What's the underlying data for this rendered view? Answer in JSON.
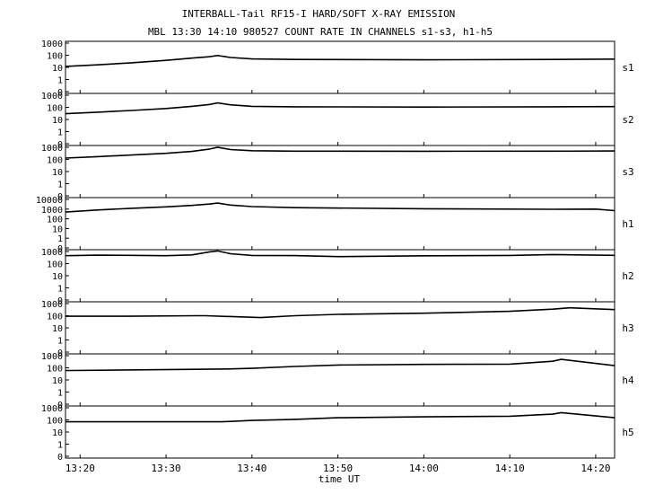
{
  "chart_data": {
    "type": "line",
    "title": "INTERBALL-Tail RF15-I HARD/SOFT X-RAY EMISSION",
    "subtitle": "MBL 13:30 14:10 980527  COUNT RATE IN CHANNELS s1-s3, h1-h5",
    "xlabel": "time UT",
    "x_ticks": [
      "13:20",
      "13:30",
      "13:40",
      "13:50",
      "14:00",
      "14:10",
      "14:20"
    ],
    "x_tick_minutes": [
      20,
      30,
      40,
      50,
      60,
      70,
      80
    ],
    "xlim_minutes": [
      18.3,
      82.2
    ],
    "y_scale": "log",
    "panels": [
      {
        "name": "s1",
        "y_ticks": [
          "1000",
          "100",
          "10",
          "1",
          "0"
        ],
        "ylim": [
          0,
          1000
        ],
        "x": [
          18.3,
          22,
          26,
          30,
          33,
          35,
          36,
          37.5,
          40,
          45,
          60,
          75,
          82.2
        ],
        "y": [
          12,
          16,
          24,
          38,
          58,
          75,
          95,
          65,
          50,
          45,
          42,
          45,
          48
        ]
      },
      {
        "name": "s2",
        "y_ticks": [
          "1000",
          "100",
          "10",
          "1",
          "0"
        ],
        "ylim": [
          0,
          1000
        ],
        "x": [
          18.3,
          22,
          26,
          30,
          33,
          35,
          36,
          37.5,
          40,
          45,
          60,
          75,
          82.2
        ],
        "y": [
          30,
          40,
          55,
          80,
          120,
          170,
          230,
          160,
          120,
          110,
          105,
          110,
          115
        ]
      },
      {
        "name": "s3",
        "y_ticks": [
          "1000",
          "100",
          "10",
          "1",
          "0"
        ],
        "ylim": [
          0,
          1000
        ],
        "x": [
          18.3,
          22,
          26,
          30,
          33,
          35,
          36,
          37.5,
          40,
          45,
          60,
          75,
          82.2
        ],
        "y": [
          130,
          170,
          230,
          320,
          460,
          700,
          1000,
          650,
          520,
          480,
          470,
          480,
          500
        ]
      },
      {
        "name": "h1",
        "y_ticks": [
          "10000",
          "1000",
          "100",
          "10",
          "1",
          "0"
        ],
        "ylim": [
          0,
          10000
        ],
        "x": [
          18.3,
          22,
          26,
          30,
          33,
          35,
          36,
          37.5,
          40,
          45,
          60,
          75,
          80,
          82.2
        ],
        "y": [
          500,
          800,
          1200,
          1700,
          2400,
          3300,
          4200,
          2600,
          1800,
          1400,
          1100,
          950,
          1000,
          700
        ]
      },
      {
        "name": "h2",
        "y_ticks": [
          "1000",
          "100",
          "10",
          "1",
          "0"
        ],
        "ylim": [
          0,
          1000
        ],
        "x": [
          18.3,
          22,
          26,
          30,
          33,
          35,
          36,
          37.5,
          40,
          45,
          50,
          60,
          70,
          75,
          82.2
        ],
        "y": [
          450,
          500,
          480,
          450,
          520,
          900,
          1100,
          650,
          470,
          460,
          380,
          440,
          470,
          560,
          480
        ]
      },
      {
        "name": "h3",
        "y_ticks": [
          "1000",
          "100",
          "10",
          "1",
          "0"
        ],
        "ylim": [
          0,
          1000
        ],
        "x": [
          18.3,
          22,
          25.5,
          33.6,
          34.6,
          41,
          45,
          50,
          60,
          70,
          75,
          77,
          82.2
        ],
        "y": [
          90,
          90,
          90,
          100,
          100,
          70,
          100,
          130,
          160,
          230,
          350,
          450,
          320
        ]
      },
      {
        "name": "h4",
        "y_ticks": [
          "1000",
          "100",
          "10",
          "1",
          "0"
        ],
        "ylim": [
          0,
          1000
        ],
        "x": [
          18.3,
          18.9,
          37.2,
          40,
          45,
          50,
          60,
          70,
          75,
          76,
          82.2
        ],
        "y": [
          60,
          60,
          80,
          90,
          130,
          170,
          190,
          200,
          350,
          500,
          150
        ]
      },
      {
        "name": "h5",
        "y_ticks": [
          "1000",
          "100",
          "10",
          "1",
          "0"
        ],
        "ylim": [
          0,
          1000
        ],
        "x": [
          18.3,
          19.1,
          36.5,
          40,
          45,
          50,
          60,
          70,
          75,
          76,
          82.2
        ],
        "y": [
          70,
          70,
          70,
          90,
          110,
          150,
          180,
          200,
          300,
          400,
          150
        ]
      }
    ]
  }
}
